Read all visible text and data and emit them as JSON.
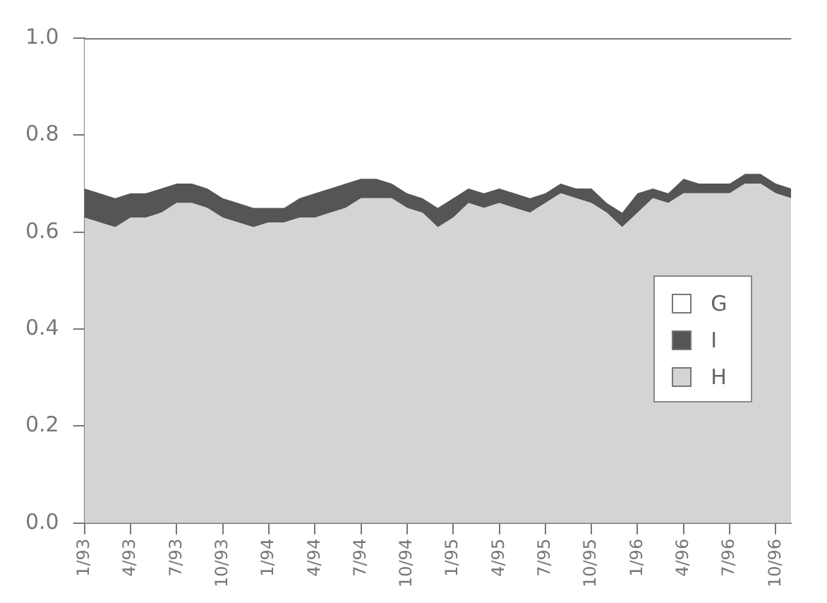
{
  "chart_data": {
    "type": "area",
    "stacked": true,
    "legend": "right",
    "categories": [
      "1/93",
      null,
      null,
      "4/93",
      null,
      null,
      "7/93",
      null,
      null,
      "10/93",
      null,
      null,
      "1/94",
      null,
      null,
      "4/94",
      null,
      null,
      "7/94",
      null,
      null,
      "10/94",
      null,
      null,
      "1/95",
      null,
      null,
      "4/95",
      null,
      null,
      "7/95",
      null,
      null,
      "10/95",
      null,
      null,
      "1/96",
      null,
      null,
      "4/96",
      null,
      null,
      "7/96",
      null,
      null,
      "10/96",
      null
    ],
    "series": [
      {
        "name": "H",
        "color": "#d4d4d4",
        "values": [
          0.63,
          0.62,
          0.61,
          0.63,
          0.63,
          0.64,
          0.66,
          0.66,
          0.65,
          0.63,
          0.62,
          0.61,
          0.62,
          0.62,
          0.63,
          0.63,
          0.64,
          0.65,
          0.67,
          0.67,
          0.67,
          0.65,
          0.64,
          0.61,
          0.63,
          0.66,
          0.65,
          0.66,
          0.65,
          0.64,
          0.66,
          0.68,
          0.67,
          0.66,
          0.64,
          0.61,
          0.64,
          0.67,
          0.66,
          0.68,
          0.68,
          0.68,
          0.68,
          0.7,
          0.7,
          0.68,
          0.67
        ]
      },
      {
        "name": "I",
        "color": "#555555",
        "values": [
          0.06,
          0.06,
          0.06,
          0.05,
          0.05,
          0.05,
          0.04,
          0.04,
          0.04,
          0.04,
          0.04,
          0.04,
          0.03,
          0.03,
          0.04,
          0.05,
          0.05,
          0.05,
          0.04,
          0.04,
          0.03,
          0.03,
          0.03,
          0.04,
          0.04,
          0.03,
          0.03,
          0.03,
          0.03,
          0.03,
          0.02,
          0.02,
          0.02,
          0.03,
          0.02,
          0.03,
          0.04,
          0.02,
          0.02,
          0.03,
          0.02,
          0.02,
          0.02,
          0.02,
          0.02,
          0.02,
          0.02
        ]
      },
      {
        "name": "G",
        "color": "#ffffff",
        "values": [
          0.31,
          0.32,
          0.33,
          0.32,
          0.32,
          0.31,
          0.3,
          0.3,
          0.31,
          0.33,
          0.34,
          0.35,
          0.35,
          0.35,
          0.33,
          0.32,
          0.31,
          0.3,
          0.29,
          0.29,
          0.3,
          0.32,
          0.33,
          0.35,
          0.33,
          0.31,
          0.32,
          0.31,
          0.32,
          0.33,
          0.32,
          0.3,
          0.31,
          0.31,
          0.34,
          0.36,
          0.32,
          0.31,
          0.32,
          0.29,
          0.3,
          0.3,
          0.3,
          0.28,
          0.28,
          0.3,
          0.31
        ]
      }
    ],
    "ylim": [
      0,
      1
    ],
    "yticks": [
      {
        "value": 0,
        "label": "0.0"
      },
      0.2,
      0.4,
      0.6,
      0.8,
      {
        "value": 1,
        "label": "1.0"
      }
    ]
  }
}
